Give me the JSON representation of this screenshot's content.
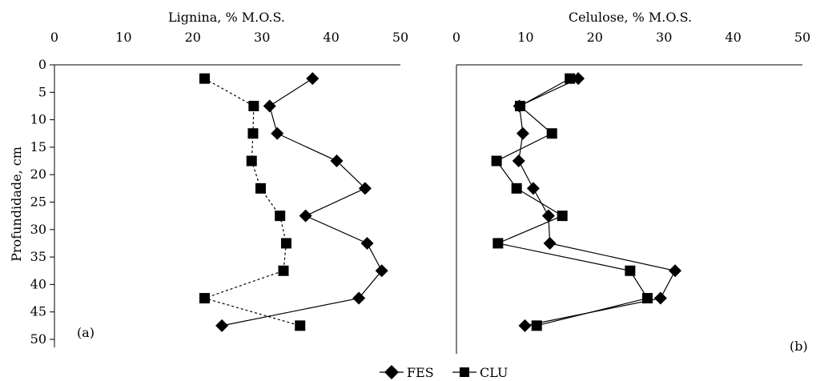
{
  "chart_data": [
    {
      "type": "line",
      "panel_label": "(a)",
      "title": "Lignina, % M.O.S.",
      "xlabel": "Lignina, % M.O.S.",
      "ylabel": "Profundidade, cm",
      "xlim": [
        0,
        50
      ],
      "ylim": [
        0,
        50
      ],
      "x_axis_position": "top",
      "y_axis_inverted": true,
      "x_ticks": [
        "0",
        "10",
        "20",
        "30",
        "40",
        "50"
      ],
      "y_ticks": [
        "0",
        "5",
        "10",
        "15",
        "20",
        "25",
        "30",
        "35",
        "40",
        "45",
        "50"
      ],
      "grid": false,
      "series": [
        {
          "name": "FES",
          "marker": "diamond",
          "line_style": "solid",
          "points": [
            {
              "x": 37.3,
              "y": 2.5
            },
            {
              "x": 31.1,
              "y": 7.5
            },
            {
              "x": 32.2,
              "y": 12.5
            },
            {
              "x": 40.8,
              "y": 17.5
            },
            {
              "x": 44.9,
              "y": 22.5
            },
            {
              "x": 36.3,
              "y": 27.5
            },
            {
              "x": 45.2,
              "y": 32.5
            },
            {
              "x": 47.3,
              "y": 37.5
            },
            {
              "x": 44.0,
              "y": 42.5
            },
            {
              "x": 24.2,
              "y": 47.5
            }
          ]
        },
        {
          "name": "CLU",
          "marker": "square",
          "line_style": "dashed",
          "points": [
            {
              "x": 21.7,
              "y": 2.5
            },
            {
              "x": 28.8,
              "y": 7.5
            },
            {
              "x": 28.7,
              "y": 12.5
            },
            {
              "x": 28.5,
              "y": 17.5
            },
            {
              "x": 29.8,
              "y": 22.5
            },
            {
              "x": 32.6,
              "y": 27.5
            },
            {
              "x": 33.5,
              "y": 32.5
            },
            {
              "x": 33.1,
              "y": 37.5
            },
            {
              "x": 21.7,
              "y": 42.5
            },
            {
              "x": 35.5,
              "y": 47.5
            }
          ]
        }
      ]
    },
    {
      "type": "line",
      "panel_label": "(b)",
      "title": "Celulose, % M.O.S.",
      "xlabel": "Celulose, % M.O.S.",
      "ylabel": "",
      "xlim": [
        0,
        50
      ],
      "ylim": [
        0,
        50
      ],
      "x_axis_position": "top",
      "y_axis_inverted": true,
      "x_ticks": [
        "0",
        "10",
        "20",
        "30",
        "40",
        "50"
      ],
      "y_ticks": [],
      "grid": false,
      "series": [
        {
          "name": "FES",
          "marker": "diamond",
          "line_style": "solid",
          "points": [
            {
              "x": 17.6,
              "y": 2.5
            },
            {
              "x": 9.1,
              "y": 7.5
            },
            {
              "x": 9.6,
              "y": 12.5
            },
            {
              "x": 9.0,
              "y": 17.5
            },
            {
              "x": 11.1,
              "y": 22.5
            },
            {
              "x": 13.3,
              "y": 27.5
            },
            {
              "x": 13.5,
              "y": 32.5
            },
            {
              "x": 31.6,
              "y": 37.5
            },
            {
              "x": 29.5,
              "y": 42.5
            },
            {
              "x": 9.9,
              "y": 47.5
            }
          ]
        },
        {
          "name": "CLU",
          "marker": "square",
          "line_style": "solid",
          "points": [
            {
              "x": 16.4,
              "y": 2.5
            },
            {
              "x": 9.2,
              "y": 7.5
            },
            {
              "x": 13.8,
              "y": 12.5
            },
            {
              "x": 5.8,
              "y": 17.5
            },
            {
              "x": 8.7,
              "y": 22.5
            },
            {
              "x": 15.3,
              "y": 27.5
            },
            {
              "x": 6.0,
              "y": 32.5
            },
            {
              "x": 25.1,
              "y": 37.5
            },
            {
              "x": 27.6,
              "y": 42.5
            },
            {
              "x": 11.6,
              "y": 47.5
            }
          ]
        }
      ]
    }
  ],
  "legend": {
    "position": "bottom-center",
    "items": [
      {
        "label": "FES",
        "marker": "diamond"
      },
      {
        "label": "CLU",
        "marker": "square"
      }
    ]
  },
  "colors": {
    "ink": "#000000",
    "background": "#ffffff"
  }
}
